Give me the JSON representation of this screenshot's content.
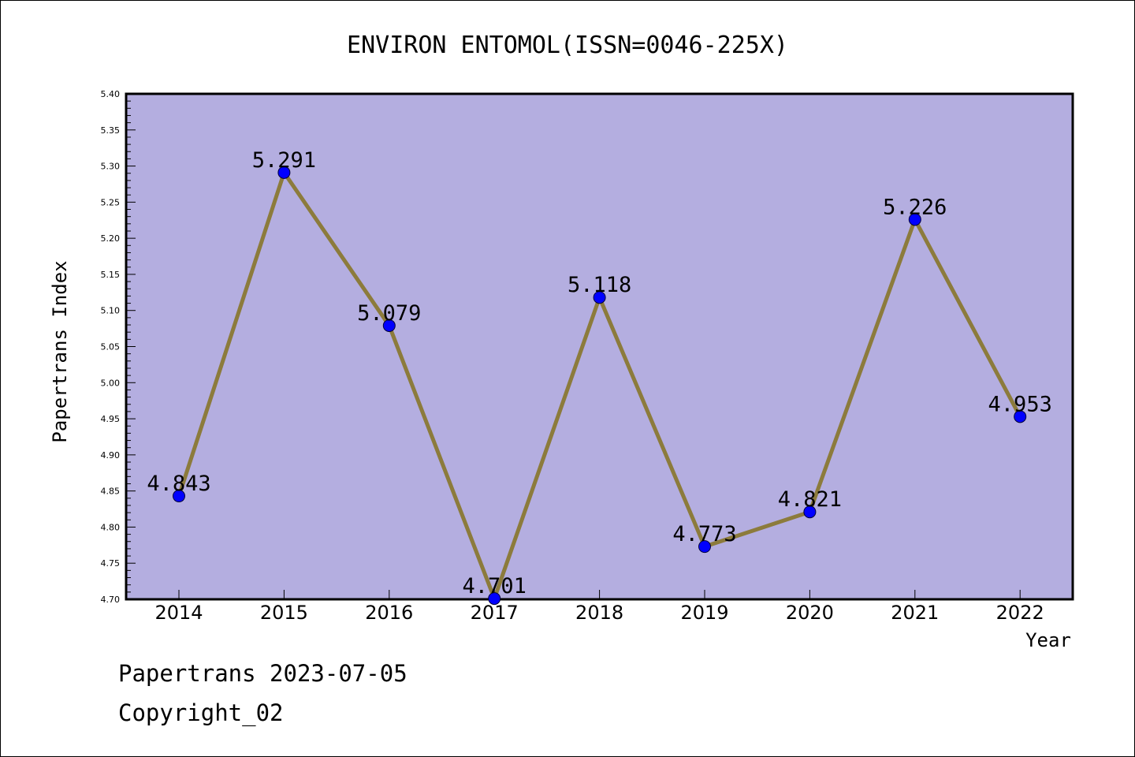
{
  "chart_data": {
    "type": "line",
    "title": "ENVIRON ENTOMOL(ISSN=0046-225X)",
    "xlabel": "Year",
    "ylabel": "Papertrans Index",
    "categories": [
      "2014",
      "2015",
      "2016",
      "2017",
      "2018",
      "2019",
      "2020",
      "2021",
      "2022"
    ],
    "values": [
      4.843,
      5.291,
      5.079,
      4.701,
      5.118,
      4.773,
      4.821,
      5.226,
      4.953
    ],
    "data_labels": [
      "4.843",
      "5.291",
      "5.079",
      "4.701",
      "5.118",
      "4.773",
      "4.821",
      "5.226",
      "4.953"
    ],
    "yticks": [
      "4.70",
      "4.75",
      "4.80",
      "4.85",
      "4.90",
      "4.95",
      "5.00",
      "5.05",
      "5.10",
      "5.15",
      "5.20",
      "5.25",
      "5.30",
      "5.35",
      "5.40"
    ],
    "ylim": [
      4.7,
      5.4
    ],
    "grid": false,
    "legend": "none",
    "colors": {
      "plot_background": "#b4aee0",
      "line": "#8c7b3c",
      "marker": "#0000ff"
    }
  },
  "footer": {
    "line1": "Papertrans 2023-07-05",
    "line2": "Copyright_02"
  }
}
